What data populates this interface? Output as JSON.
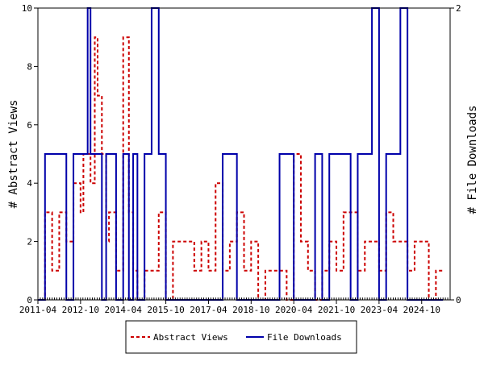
{
  "chart_data": {
    "type": "line",
    "x_ticks": [
      "2011-04",
      "2012-10",
      "2014-04",
      "2015-10",
      "2017-04",
      "2018-10",
      "2020-04",
      "2021-10",
      "2023-04",
      "2024-10"
    ],
    "left_axis": {
      "label": "# Abstract Views",
      "ylim": [
        0,
        10
      ],
      "ticks": [
        "0",
        "2",
        "4",
        "6",
        "8",
        "10"
      ]
    },
    "right_axis": {
      "label": "# File Downloads",
      "ylim": [
        0,
        2
      ],
      "ticks": [
        "0",
        "2"
      ]
    },
    "series": [
      {
        "name": "Abstract Views",
        "axis": "left",
        "color": "#cc0000",
        "style": "dashed",
        "x": [
          2011.0,
          2011.25,
          2011.5,
          2011.75,
          2012.0,
          2012.25,
          2012.5,
          2012.6,
          2012.75,
          2012.85,
          2013.0,
          2013.1,
          2013.25,
          2013.4,
          2013.5,
          2013.75,
          2014.0,
          2014.2,
          2014.35,
          2014.5,
          2014.75,
          2015.0,
          2015.25,
          2015.5,
          2015.75,
          2016.0,
          2016.25,
          2016.5,
          2016.75,
          2017.0,
          2017.25,
          2017.5,
          2017.75,
          2018.0,
          2018.25,
          2018.5,
          2018.75,
          2019.0,
          2019.25,
          2019.5,
          2019.75,
          2020.0,
          2020.25,
          2020.5,
          2020.75,
          2021.0,
          2021.25,
          2021.5,
          2021.75,
          2022.0,
          2022.25,
          2022.5,
          2022.75,
          2023.0,
          2023.25,
          2023.5,
          2023.75,
          2024.0,
          2024.25,
          2024.5,
          2024.75,
          2025.0,
          2025.25
        ],
        "values": [
          0,
          3,
          1,
          3,
          2,
          4,
          3,
          5,
          5,
          4,
          9,
          7,
          5,
          2,
          3,
          1,
          9,
          3,
          1,
          0,
          1,
          1,
          3,
          0,
          2,
          2,
          2,
          1,
          2,
          1,
          4,
          1,
          2,
          3,
          1,
          2,
          0,
          1,
          1,
          1,
          0,
          5,
          2,
          1,
          0,
          1,
          2,
          1,
          3,
          3,
          1,
          2,
          2,
          1,
          3,
          2,
          2,
          1,
          2,
          2,
          0,
          1,
          1
        ]
      },
      {
        "name": "File Downloads",
        "axis": "right",
        "color": "#0000aa",
        "style": "solid",
        "x": [
          2011.0,
          2011.25,
          2011.5,
          2011.75,
          2012.0,
          2012.25,
          2012.5,
          2012.6,
          2012.75,
          2012.85,
          2013.0,
          2013.1,
          2013.25,
          2013.4,
          2013.5,
          2013.75,
          2014.0,
          2014.2,
          2014.35,
          2014.5,
          2014.75,
          2015.0,
          2015.25,
          2015.5,
          2015.75,
          2016.0,
          2016.25,
          2016.5,
          2016.75,
          2017.0,
          2017.25,
          2017.5,
          2017.75,
          2018.0,
          2018.25,
          2018.5,
          2018.75,
          2019.0,
          2019.25,
          2019.5,
          2019.75,
          2020.0,
          2020.25,
          2020.5,
          2020.75,
          2021.0,
          2021.25,
          2021.5,
          2021.75,
          2022.0,
          2022.25,
          2022.5,
          2022.75,
          2023.0,
          2023.25,
          2023.5,
          2023.75,
          2024.0,
          2024.25,
          2024.5,
          2024.75,
          2025.0,
          2025.25
        ],
        "values": [
          0,
          1,
          1,
          1,
          0,
          1,
          1,
          1,
          2,
          1,
          1,
          1,
          0,
          1,
          1,
          0,
          1,
          0,
          1,
          0,
          1,
          2,
          1,
          0,
          0,
          0,
          0,
          0,
          0,
          0,
          0,
          1,
          1,
          0,
          0,
          0,
          0,
          0,
          0,
          1,
          1,
          0,
          0,
          0,
          1,
          0,
          1,
          1,
          1,
          0,
          1,
          1,
          2,
          0,
          1,
          1,
          2,
          0,
          0,
          0,
          0,
          0,
          0
        ]
      }
    ],
    "legend_position": "bottom-center",
    "grid": false
  }
}
